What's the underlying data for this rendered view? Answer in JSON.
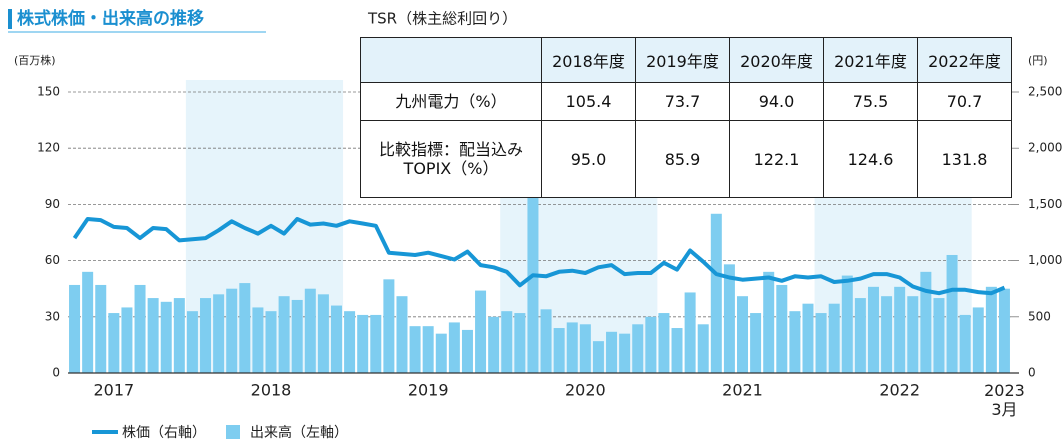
{
  "chart_data": {
    "type": "combo",
    "title": "株式株価・出来高の推移",
    "y_label": "(百万株)",
    "y2_label": "(円)",
    "categories": [
      null,
      null,
      null,
      "2017",
      null,
      null,
      null,
      null,
      null,
      null,
      null,
      null,
      null,
      null,
      null,
      "2018",
      null,
      null,
      null,
      null,
      null,
      null,
      null,
      null,
      null,
      null,
      null,
      "2019",
      null,
      null,
      null,
      null,
      null,
      null,
      null,
      null,
      null,
      null,
      null,
      "2020",
      null,
      null,
      null,
      null,
      null,
      null,
      null,
      null,
      null,
      null,
      null,
      "2021",
      null,
      null,
      null,
      null,
      null,
      null,
      null,
      null,
      null,
      null,
      null,
      "2022",
      null,
      null,
      null,
      null,
      null,
      null,
      null,
      "2023\n3月"
    ],
    "shade_alternate": true,
    "ylim": [
      0,
      150
    ],
    "yticks": [
      0,
      30,
      60,
      90,
      120,
      150
    ],
    "y2lim": [
      0,
      2500
    ],
    "y2ticks": [
      0,
      500,
      {
        "value": 1000,
        "label": "1,000"
      },
      {
        "value": 1500,
        "label": "1,500"
      },
      {
        "value": 2000,
        "label": "2,000"
      },
      {
        "value": 2500,
        "label": "2,500"
      }
    ],
    "grid": true,
    "series": [
      {
        "name": "株価（右軸）",
        "type": "line",
        "axis": "y2",
        "color": "#1796d6",
        "values": [
          1200,
          1370,
          1360,
          1300,
          1290,
          1200,
          1290,
          1280,
          1180,
          1190,
          1200,
          1270,
          1350,
          1290,
          1240,
          1310,
          1240,
          1370,
          1320,
          1330,
          1310,
          1350,
          1330,
          1310,
          1070,
          1060,
          1050,
          1070,
          1040,
          1010,
          1080,
          960,
          940,
          900,
          780,
          870,
          860,
          900,
          910,
          890,
          940,
          960,
          880,
          890,
          890,
          980,
          920,
          1090,
          990,
          880,
          850,
          830,
          840,
          850,
          820,
          860,
          850,
          860,
          810,
          820,
          840,
          880,
          880,
          850,
          770,
          730,
          710,
          740,
          740,
          720,
          710,
          760
        ]
      },
      {
        "name": "出来高（左軸）",
        "type": "bar",
        "color": "#7ecdf0",
        "values": [
          47,
          54,
          47,
          32,
          35,
          47,
          40,
          38,
          40,
          33,
          40,
          42,
          45,
          48,
          35,
          33,
          41,
          39,
          45,
          42,
          36,
          33,
          31,
          31,
          50,
          41,
          25,
          25,
          21,
          27,
          23,
          44,
          30,
          33,
          32,
          100,
          34,
          24,
          27,
          26,
          17,
          22,
          21,
          26,
          30,
          32,
          24,
          43,
          26,
          85,
          58,
          41,
          32,
          54,
          47,
          33,
          37,
          32,
          37,
          52,
          40,
          46,
          41,
          46,
          41,
          54,
          40,
          63,
          31,
          35,
          46,
          45
        ]
      }
    ]
  },
  "table": {
    "title": "TSR（株主総利回り）",
    "columns": [
      "2018年度",
      "2019年度",
      "2020年度",
      "2021年度",
      "2022年度"
    ],
    "rows": [
      {
        "label": "九州電力（%）",
        "values": [
          "105.4",
          "73.7",
          "94.0",
          "75.5",
          "70.7"
        ]
      },
      {
        "label": "比較指標：配当込み\nTOPIX（%）",
        "values": [
          "95.0",
          "85.9",
          "122.1",
          "124.6",
          "131.8"
        ]
      }
    ]
  }
}
